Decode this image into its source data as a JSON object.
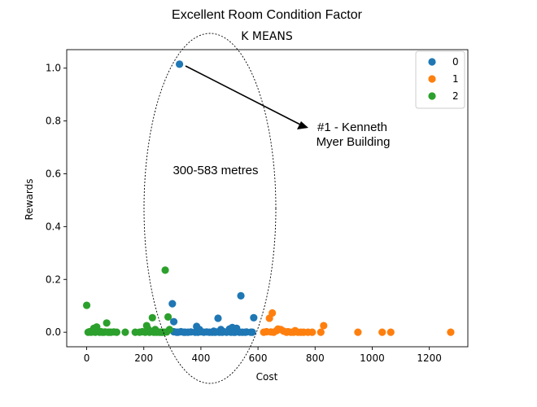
{
  "chart_data": {
    "type": "scatter",
    "suptitle": "Excellent Room Condition Factor",
    "title": "K MEANS",
    "xlabel": "Cost",
    "ylabel": "Rewards",
    "xlim": [
      -70,
      1335
    ],
    "ylim": [
      -0.055,
      1.07
    ],
    "xticks": [
      0,
      200,
      400,
      600,
      800,
      1000,
      1200
    ],
    "yticks": [
      0.0,
      0.2,
      0.4,
      0.6,
      0.8,
      1.0
    ],
    "xtick_labels": [
      "0",
      "200",
      "400",
      "600",
      "800",
      "1000",
      "1200"
    ],
    "ytick_labels": [
      "0.0",
      "0.2",
      "0.4",
      "0.6",
      "0.8",
      "1.0"
    ],
    "legend_position": "top-right",
    "series": [
      {
        "name": "0",
        "color": "#1f77b4",
        "points": [
          [
            325,
            1.015
          ],
          [
            300,
            0.108
          ],
          [
            305,
            0.04
          ],
          [
            540,
            0.138
          ],
          [
            585,
            0.055
          ],
          [
            460,
            0.053
          ],
          [
            385,
            0.022
          ],
          [
            395,
            0.01
          ],
          [
            510,
            0.018
          ],
          [
            525,
            0.015
          ],
          [
            470,
            0.01
          ],
          [
            500,
            0.012
          ],
          [
            305,
            0.002
          ],
          [
            315,
            0.0
          ],
          [
            320,
            0.0
          ],
          [
            330,
            0.002
          ],
          [
            340,
            0.0
          ],
          [
            345,
            0.0
          ],
          [
            355,
            0.0
          ],
          [
            365,
            0.001
          ],
          [
            380,
            0.0
          ],
          [
            390,
            0.0
          ],
          [
            400,
            0.002
          ],
          [
            410,
            0.0
          ],
          [
            420,
            0.001
          ],
          [
            430,
            0.0
          ],
          [
            440,
            0.0
          ],
          [
            445,
            0.004
          ],
          [
            450,
            0.0
          ],
          [
            455,
            0.001
          ],
          [
            465,
            0.0
          ],
          [
            475,
            0.0
          ],
          [
            480,
            0.002
          ],
          [
            490,
            0.0
          ],
          [
            505,
            0.0
          ],
          [
            515,
            0.0
          ],
          [
            520,
            0.0
          ],
          [
            530,
            0.003
          ],
          [
            535,
            0.0
          ],
          [
            545,
            0.0
          ],
          [
            555,
            0.0
          ],
          [
            560,
            0.001
          ],
          [
            575,
            0.0
          ],
          [
            580,
            0.0
          ]
        ]
      },
      {
        "name": "1",
        "color": "#ff7f0e",
        "points": [
          [
            650,
            0.073
          ],
          [
            640,
            0.053
          ],
          [
            830,
            0.025
          ],
          [
            620,
            0.0
          ],
          [
            630,
            0.002
          ],
          [
            645,
            0.001
          ],
          [
            655,
            0.0
          ],
          [
            665,
            0.006
          ],
          [
            670,
            0.012
          ],
          [
            680,
            0.01
          ],
          [
            690,
            0.004
          ],
          [
            700,
            0.0
          ],
          [
            705,
            0.002
          ],
          [
            715,
            0.0
          ],
          [
            725,
            0.0
          ],
          [
            730,
            0.006
          ],
          [
            740,
            0.0
          ],
          [
            750,
            0.0
          ],
          [
            760,
            0.0
          ],
          [
            775,
            0.0
          ],
          [
            790,
            0.0
          ],
          [
            820,
            0.0
          ],
          [
            950,
            0.0
          ],
          [
            1035,
            0.0
          ],
          [
            1065,
            0.0
          ],
          [
            1275,
            0.0
          ]
        ]
      },
      {
        "name": "2",
        "color": "#2ca02c",
        "points": [
          [
            275,
            0.235
          ],
          [
            0,
            0.102
          ],
          [
            230,
            0.055
          ],
          [
            285,
            0.058
          ],
          [
            70,
            0.035
          ],
          [
            35,
            0.02
          ],
          [
            25,
            0.015
          ],
          [
            210,
            0.025
          ],
          [
            215,
            0.012
          ],
          [
            240,
            0.01
          ],
          [
            290,
            0.01
          ],
          [
            5,
            0.0
          ],
          [
            10,
            0.002
          ],
          [
            15,
            0.0
          ],
          [
            20,
            0.001
          ],
          [
            30,
            0.0
          ],
          [
            40,
            0.003
          ],
          [
            45,
            0.0
          ],
          [
            50,
            0.002
          ],
          [
            55,
            0.0
          ],
          [
            60,
            0.0
          ],
          [
            65,
            0.001
          ],
          [
            75,
            0.0
          ],
          [
            80,
            0.0
          ],
          [
            85,
            0.0
          ],
          [
            95,
            0.001
          ],
          [
            105,
            0.0
          ],
          [
            135,
            0.0
          ],
          [
            170,
            0.0
          ],
          [
            185,
            0.0
          ],
          [
            195,
            0.002
          ],
          [
            205,
            0.0
          ],
          [
            220,
            0.0
          ],
          [
            225,
            0.003
          ],
          [
            235,
            0.0
          ],
          [
            245,
            0.0
          ],
          [
            250,
            0.001
          ],
          [
            255,
            0.0
          ],
          [
            260,
            0.0
          ],
          [
            265,
            0.0
          ],
          [
            270,
            0.0
          ],
          [
            280,
            0.001
          ]
        ]
      }
    ],
    "annotations": {
      "range_label": "300-583 metres",
      "building_label_line1": "#1 - Kenneth",
      "building_label_line2": "Myer Building"
    }
  }
}
